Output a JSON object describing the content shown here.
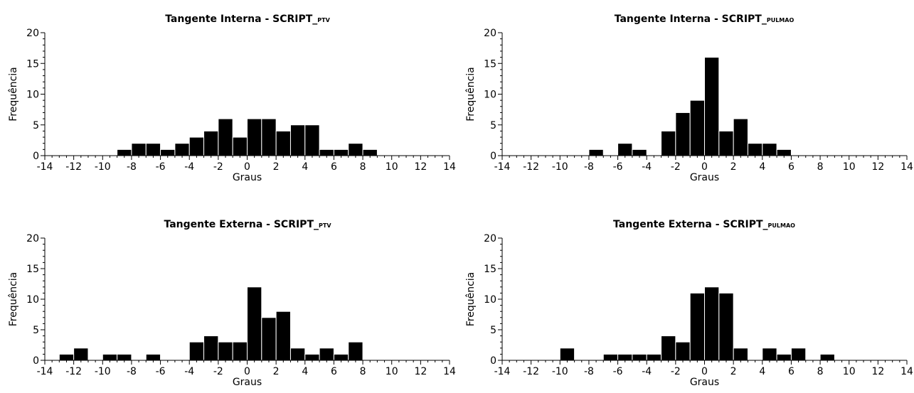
{
  "chart_data": [
    {
      "type": "bar",
      "title": "Tangente Interna - SCRIPT_",
      "title_sub": "PTV",
      "xlabel": "Graus",
      "ylabel": "Frequência",
      "xlim": [
        -14,
        14
      ],
      "ylim": [
        0,
        20
      ],
      "xticks": [
        -14,
        -12,
        -10,
        -8,
        -6,
        -4,
        -2,
        0,
        2,
        4,
        6,
        8,
        10,
        12,
        14
      ],
      "yticks": [
        0,
        5,
        10,
        15,
        20
      ],
      "bin_width": 1,
      "bin_starts": [
        -9,
        -8,
        -7,
        -6,
        -5,
        -4,
        -3,
        -2,
        -1,
        0,
        1,
        2,
        3,
        4,
        5,
        6,
        7,
        8
      ],
      "values": [
        1,
        2,
        2,
        1,
        2,
        3,
        4,
        6,
        3,
        6,
        6,
        4,
        5,
        5,
        1,
        1,
        2,
        1
      ]
    },
    {
      "type": "bar",
      "title": "Tangente Interna - SCRIPT_",
      "title_sub": "PULMAO",
      "xlabel": "Graus",
      "ylabel": "Frequência",
      "xlim": [
        -14,
        14
      ],
      "ylim": [
        0,
        20
      ],
      "xticks": [
        -14,
        -12,
        -10,
        -8,
        -6,
        -4,
        -2,
        0,
        2,
        4,
        6,
        8,
        10,
        12,
        14
      ],
      "yticks": [
        0,
        5,
        10,
        15,
        20
      ],
      "bin_width": 1,
      "bin_starts": [
        -8,
        -7,
        -6,
        -5,
        -4,
        -3,
        -2,
        -1,
        0,
        1,
        2,
        3,
        4,
        5
      ],
      "values": [
        1,
        0,
        2,
        1,
        0,
        4,
        7,
        9,
        16,
        4,
        6,
        2,
        2,
        1
      ]
    },
    {
      "type": "bar",
      "title": "Tangente Externa - SCRIPT_",
      "title_sub": "PTV",
      "xlabel": "Graus",
      "ylabel": "Frequência",
      "xlim": [
        -14,
        14
      ],
      "ylim": [
        0,
        20
      ],
      "xticks": [
        -14,
        -12,
        -10,
        -8,
        -6,
        -4,
        -2,
        0,
        2,
        4,
        6,
        8,
        10,
        12,
        14
      ],
      "yticks": [
        0,
        5,
        10,
        15,
        20
      ],
      "bin_width": 1,
      "bin_starts": [
        -13,
        -12,
        -11,
        -10,
        -9,
        -8,
        -7,
        -6,
        -5,
        -4,
        -3,
        -2,
        -1,
        0,
        1,
        2,
        3,
        4,
        5,
        6,
        7
      ],
      "values": [
        1,
        2,
        0,
        1,
        1,
        0,
        1,
        0,
        0,
        3,
        4,
        3,
        3,
        12,
        7,
        8,
        2,
        1,
        2,
        1,
        3
      ]
    },
    {
      "type": "bar",
      "title": "Tangente Externa - SCRIPT_",
      "title_sub": "PULMAO",
      "xlabel": "Graus",
      "ylabel": "Frequência",
      "xlim": [
        -14,
        14
      ],
      "ylim": [
        0,
        20
      ],
      "xticks": [
        -14,
        -12,
        -10,
        -8,
        -6,
        -4,
        -2,
        0,
        2,
        4,
        6,
        8,
        10,
        12,
        14
      ],
      "yticks": [
        0,
        5,
        10,
        15,
        20
      ],
      "bin_width": 1,
      "bin_starts": [
        -10,
        -9,
        -8,
        -7,
        -6,
        -5,
        -4,
        -3,
        -2,
        -1,
        0,
        1,
        2,
        3,
        4,
        5,
        6,
        7,
        8
      ],
      "values": [
        2,
        0,
        0,
        1,
        1,
        1,
        1,
        4,
        3,
        11,
        12,
        11,
        2,
        0,
        2,
        1,
        2,
        0,
        1
      ]
    }
  ]
}
